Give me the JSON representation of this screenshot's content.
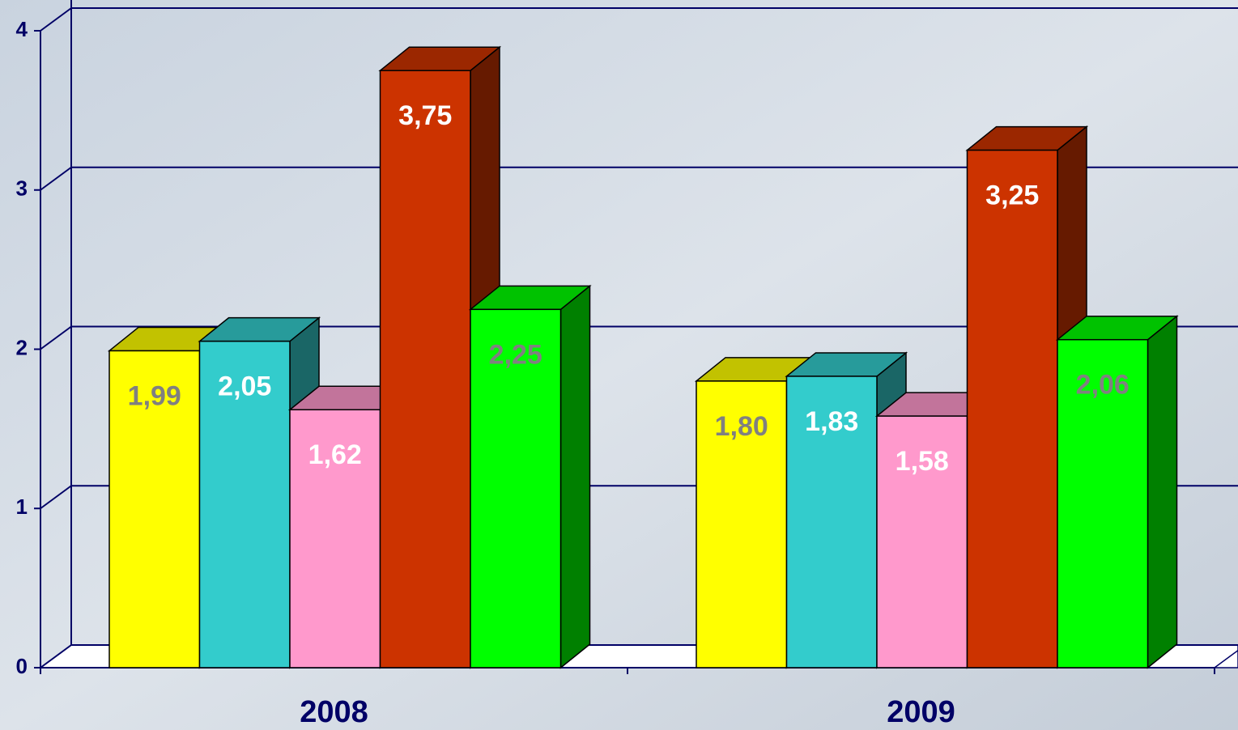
{
  "chart_data": {
    "type": "bar3d",
    "categories": [
      "2008",
      "2009"
    ],
    "series": [
      {
        "color": "#ffff00",
        "label_color": "#808080",
        "values": [
          1.99,
          1.8
        ],
        "value_labels": [
          "1,99",
          "1,80"
        ]
      },
      {
        "color": "#33cccc",
        "label_color": "#ffffff",
        "values": [
          2.05,
          1.83
        ],
        "value_labels": [
          "2,05",
          "1,83"
        ]
      },
      {
        "color": "#ff99cc",
        "label_color": "#ffffff",
        "values": [
          1.62,
          1.58
        ],
        "value_labels": [
          "1,62",
          "1,58"
        ]
      },
      {
        "color": "#cc3300",
        "label_color": "#ffffff",
        "values": [
          3.75,
          3.25
        ],
        "value_labels": [
          "3,75",
          "3,25"
        ]
      },
      {
        "color": "#00ff00",
        "label_color": "#808080",
        "values": [
          2.25,
          2.06
        ],
        "value_labels": [
          "2,25",
          "2,06"
        ]
      }
    ],
    "ylim": [
      0,
      4
    ],
    "yticks": [
      0,
      1,
      2,
      3,
      4
    ],
    "grid": true
  }
}
